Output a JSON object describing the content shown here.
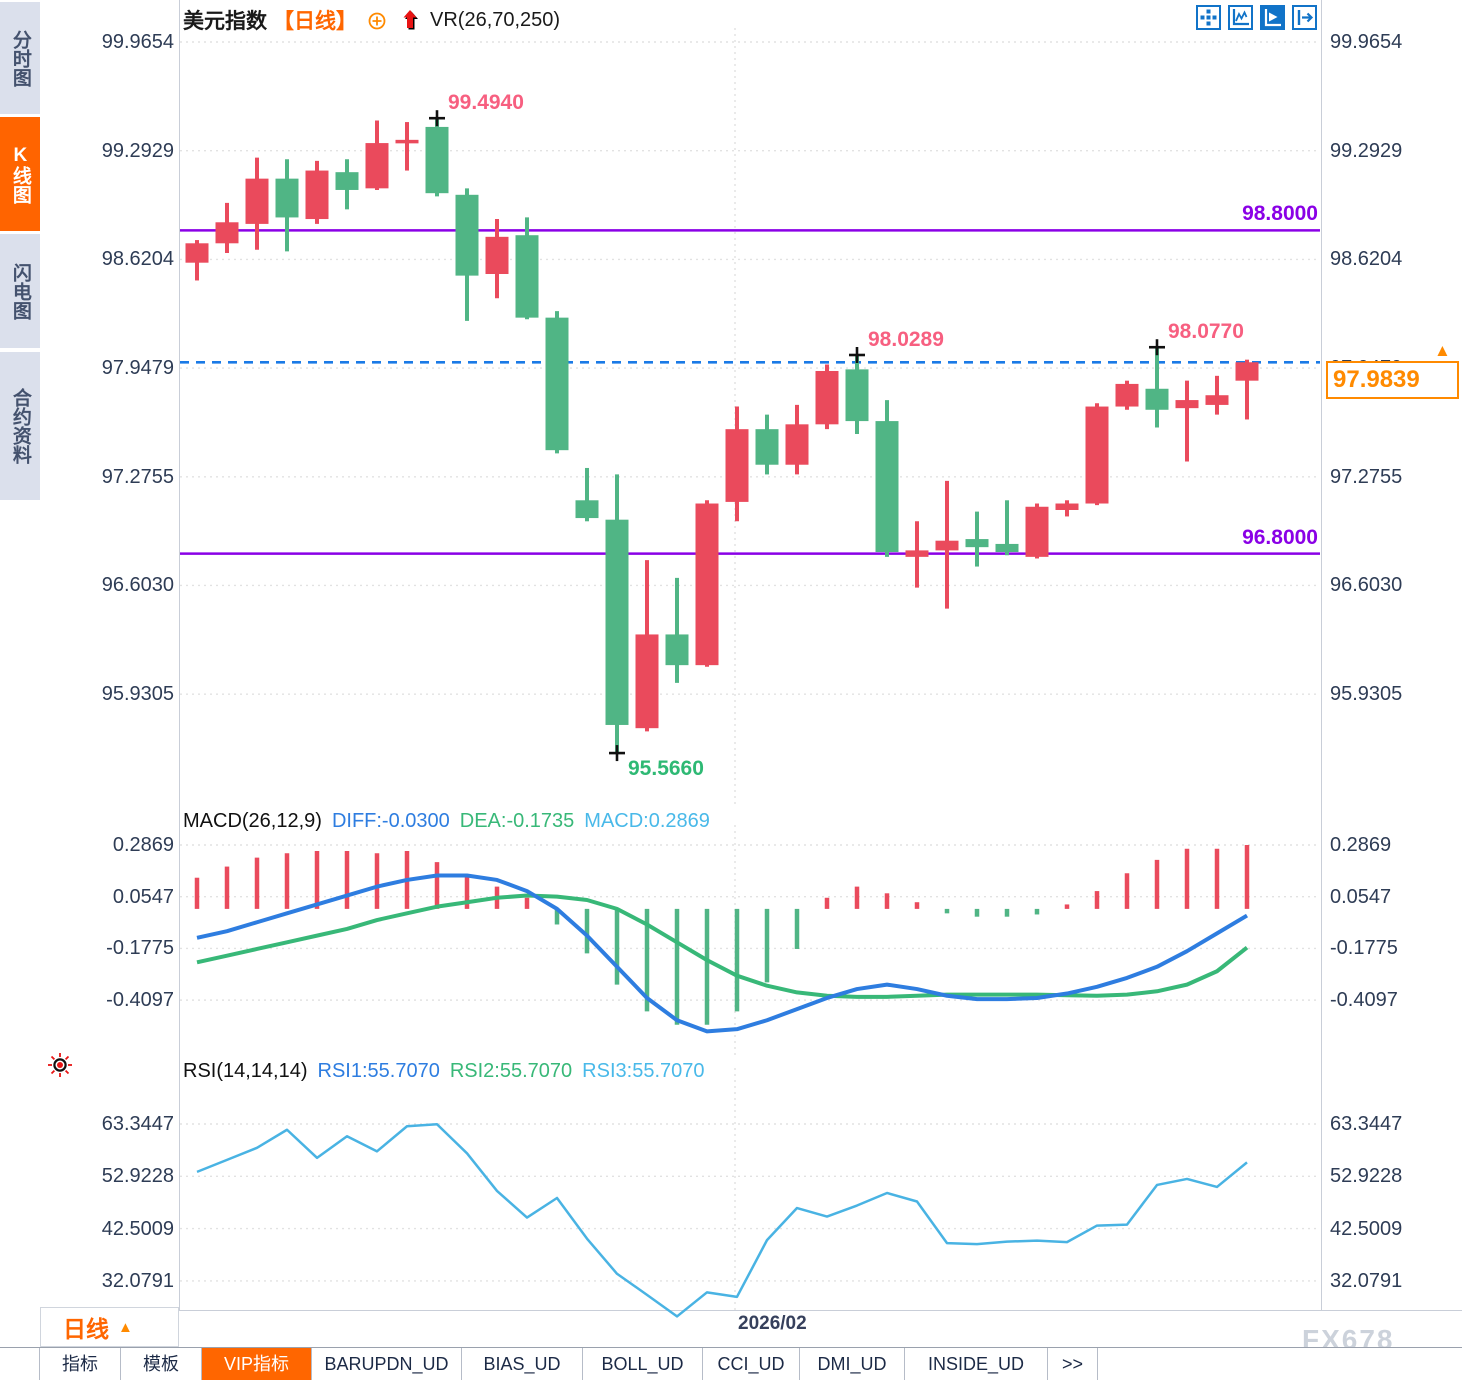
{
  "app": {
    "watermark": "FX678"
  },
  "sidebar": {
    "tabs": [
      {
        "label": "分时图",
        "active": false
      },
      {
        "label": "K线图",
        "active": true
      },
      {
        "label": "闪电图",
        "active": false
      },
      {
        "label": "合约资料",
        "active": false
      }
    ]
  },
  "header": {
    "symbol": "美元指数",
    "period": "【日线】",
    "indicator": "VR(26,70,250)"
  },
  "toolbar": {
    "icons": [
      "pan-icon",
      "axis-scale-icon",
      "auto-follow-icon",
      "go-latest-icon"
    ],
    "active_index": 2
  },
  "price_tag": {
    "value": "97.9839",
    "arrow": "▲"
  },
  "period_selector": {
    "label": "日线",
    "arrow": "▲"
  },
  "x_axis": {
    "date_label": "2026/02"
  },
  "bottom_tabs": [
    {
      "label": "指标",
      "active": false
    },
    {
      "label": "模板",
      "active": false
    },
    {
      "label": "VIP指标",
      "active": true
    },
    {
      "label": "BARUPDN_UD",
      "active": false
    },
    {
      "label": "BIAS_UD",
      "active": false
    },
    {
      "label": "BOLL_UD",
      "active": false
    },
    {
      "label": "CCI_UD",
      "active": false
    },
    {
      "label": "DMI_UD",
      "active": false
    },
    {
      "label": "INSIDE_UD",
      "active": false
    },
    {
      "label": ">>",
      "active": false
    }
  ],
  "colors": {
    "up": "#ea4a5c",
    "down": "#50b585",
    "level_purple": "#8a00e6",
    "dash_blue": "#1a7ae6",
    "macd_diff": "#2e7de0",
    "macd_dea": "#38b878",
    "rsi_line": "#49b3e3",
    "accent_orange": "#ff6600",
    "price_orange": "#ff8a00",
    "grid": "#e2e2e2",
    "axis_text": "#2e3c55",
    "annotation_high": "#f75f80",
    "annotation_low": "#2eb974"
  },
  "chart_data": [
    {
      "type": "candlestick",
      "title": "美元指数 日线 K线图",
      "y_ticks": [
        "99.9654",
        "99.2929",
        "98.6204",
        "97.9479",
        "97.2755",
        "96.6030",
        "95.9305"
      ],
      "hlines": [
        {
          "value": 98.8,
          "label": "98.8000"
        },
        {
          "value": 96.8,
          "label": "96.8000"
        }
      ],
      "current_price": 97.9839,
      "x_label": "2026/02",
      "month_gridline_candle": 19,
      "annotations": [
        {
          "candle": 9,
          "value": 99.494,
          "text": "99.4940",
          "kind": "high"
        },
        {
          "candle": 15,
          "value": 95.566,
          "text": "95.5660",
          "kind": "low"
        },
        {
          "candle": 23,
          "value": 98.0289,
          "text": "98.0289",
          "kind": "high"
        },
        {
          "candle": 33,
          "value": 98.077,
          "text": "98.0770",
          "kind": "high"
        }
      ],
      "candles": [
        [
          98.6,
          98.74,
          98.49,
          98.72
        ],
        [
          98.72,
          98.97,
          98.66,
          98.85
        ],
        [
          98.84,
          99.25,
          98.68,
          99.12
        ],
        [
          99.12,
          99.24,
          98.67,
          98.88
        ],
        [
          98.87,
          99.23,
          98.84,
          99.17
        ],
        [
          99.16,
          99.24,
          98.93,
          99.05
        ],
        [
          99.06,
          99.48,
          99.05,
          99.34
        ],
        [
          99.34,
          99.47,
          99.17,
          99.36
        ],
        [
          99.44,
          99.494,
          99.01,
          99.03
        ],
        [
          99.02,
          99.06,
          98.24,
          98.52
        ],
        [
          98.53,
          98.87,
          98.38,
          98.76
        ],
        [
          98.77,
          98.88,
          98.25,
          98.26
        ],
        [
          98.26,
          98.3,
          97.42,
          97.44
        ],
        [
          97.13,
          97.33,
          97.0,
          97.02
        ],
        [
          97.01,
          97.29,
          95.566,
          95.74
        ],
        [
          95.72,
          96.76,
          95.7,
          96.3
        ],
        [
          96.3,
          96.65,
          96.0,
          96.11
        ],
        [
          96.11,
          97.13,
          96.1,
          97.11
        ],
        [
          97.12,
          97.71,
          97.0,
          97.57
        ],
        [
          97.57,
          97.66,
          97.29,
          97.35
        ],
        [
          97.35,
          97.72,
          97.29,
          97.6
        ],
        [
          97.6,
          97.97,
          97.57,
          97.93
        ],
        [
          97.94,
          98.0289,
          97.54,
          97.62
        ],
        [
          97.62,
          97.75,
          96.78,
          96.81
        ],
        [
          96.78,
          97.0,
          96.59,
          96.82
        ],
        [
          96.82,
          97.25,
          96.46,
          96.88
        ],
        [
          96.89,
          97.06,
          96.72,
          96.84
        ],
        [
          96.86,
          97.13,
          96.79,
          96.81
        ],
        [
          96.78,
          97.11,
          96.77,
          97.09
        ],
        [
          97.07,
          97.13,
          97.03,
          97.11
        ],
        [
          97.11,
          97.73,
          97.1,
          97.71
        ],
        [
          97.71,
          97.87,
          97.69,
          97.85
        ],
        [
          97.82,
          98.077,
          97.58,
          97.69
        ],
        [
          97.7,
          97.87,
          97.37,
          97.75
        ],
        [
          97.72,
          97.9,
          97.66,
          97.78
        ],
        [
          97.87,
          98.0,
          97.63,
          97.9839
        ]
      ]
    },
    {
      "type": "macd",
      "label": "MACD(26,12,9)",
      "diff_label": "DIFF:-0.0300",
      "dea_label": "DEA:-0.1735",
      "macd_label": "MACD:0.2869",
      "y_ticks": [
        "0.2869",
        "0.0547",
        "-0.1775",
        "-0.4097"
      ],
      "histogram": [
        0.14,
        0.19,
        0.23,
        0.25,
        0.26,
        0.26,
        0.25,
        0.26,
        0.21,
        0.15,
        0.1,
        0.05,
        -0.07,
        -0.2,
        -0.34,
        -0.46,
        -0.52,
        -0.52,
        -0.46,
        -0.33,
        -0.18,
        0.05,
        0.1,
        0.07,
        0.03,
        -0.02,
        -0.035,
        -0.035,
        -0.025,
        0.02,
        0.08,
        0.16,
        0.22,
        0.27,
        0.27,
        0.2869
      ],
      "diff": [
        -0.13,
        -0.1,
        -0.06,
        -0.02,
        0.02,
        0.06,
        0.1,
        0.13,
        0.15,
        0.15,
        0.13,
        0.08,
        0.0,
        -0.12,
        -0.26,
        -0.4,
        -0.5,
        -0.55,
        -0.54,
        -0.5,
        -0.45,
        -0.4,
        -0.36,
        -0.34,
        -0.36,
        -0.39,
        -0.405,
        -0.405,
        -0.4,
        -0.38,
        -0.35,
        -0.31,
        -0.26,
        -0.19,
        -0.11,
        -0.03
      ],
      "dea": [
        -0.24,
        -0.21,
        -0.18,
        -0.15,
        -0.12,
        -0.09,
        -0.05,
        -0.02,
        0.01,
        0.03,
        0.05,
        0.06,
        0.055,
        0.04,
        0.0,
        -0.07,
        -0.15,
        -0.23,
        -0.3,
        -0.345,
        -0.375,
        -0.39,
        -0.395,
        -0.395,
        -0.39,
        -0.385,
        -0.385,
        -0.385,
        -0.385,
        -0.388,
        -0.39,
        -0.385,
        -0.37,
        -0.34,
        -0.28,
        -0.1735
      ]
    },
    {
      "type": "line",
      "label": "RSI(14,14,14)",
      "rsi1_label": "RSI1:55.7070",
      "rsi2_label": "RSI2:55.7070",
      "rsi3_label": "RSI3:55.7070",
      "y_ticks": [
        "63.3447",
        "52.9228",
        "42.5009",
        "32.0791"
      ],
      "values": [
        53.8,
        56.2,
        58.6,
        62.2,
        56.6,
        60.9,
        57.9,
        62.9,
        63.3,
        57.5,
        50.0,
        44.7,
        48.6,
        40.5,
        33.5,
        29.3,
        25.0,
        29.8,
        28.9,
        40.2,
        46.6,
        44.9,
        47.1,
        49.6,
        47.9,
        39.6,
        39.4,
        39.9,
        40.1,
        39.8,
        43.1,
        43.3,
        51.2,
        52.4,
        50.8,
        55.7
      ]
    }
  ]
}
